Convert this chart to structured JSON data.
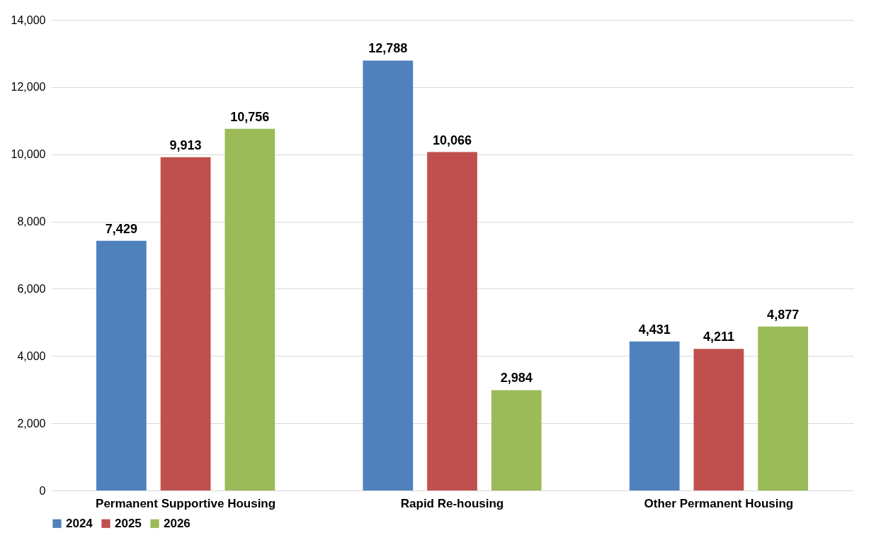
{
  "chart_data": {
    "type": "bar",
    "categories": [
      "Permanent Supportive Housing",
      "Rapid Re-housing",
      "Other Permanent Housing"
    ],
    "series": [
      {
        "name": "2024",
        "color": "#4f81bd",
        "values": [
          7429,
          12788,
          4431
        ],
        "value_labels": [
          "7,429",
          "12,788",
          "4,431"
        ]
      },
      {
        "name": "2025",
        "color": "#c0504d",
        "values": [
          9913,
          10066,
          4211
        ],
        "value_labels": [
          "9,913",
          "10,066",
          "4,211"
        ]
      },
      {
        "name": "2026",
        "color": "#9bbb59",
        "values": [
          10756,
          2984,
          4877
        ],
        "value_labels": [
          "10,756",
          "2,984",
          "4,877"
        ]
      }
    ],
    "ylim": [
      0,
      14000
    ],
    "yticks": [
      0,
      {
        "value": 2000,
        "label": "2,000"
      },
      {
        "value": 4000,
        "label": "4,000"
      },
      {
        "value": 6000,
        "label": "6,000"
      },
      {
        "value": 8000,
        "label": "8,000"
      },
      {
        "value": 10000,
        "label": "10,000"
      },
      {
        "value": 12000,
        "label": "12,000"
      },
      {
        "value": 14000,
        "label": "14,000"
      }
    ],
    "grid": "y",
    "legend": "bottom"
  }
}
